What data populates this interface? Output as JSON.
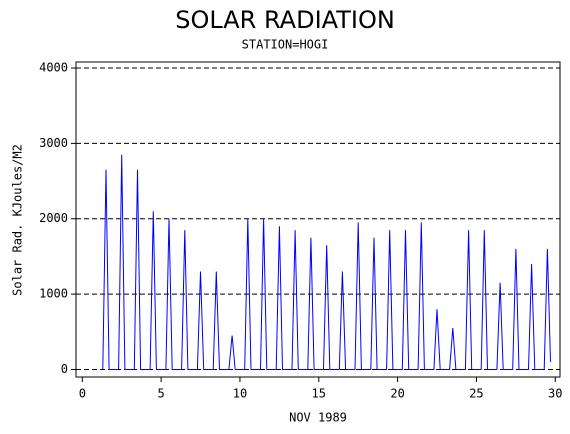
{
  "chart_data": {
    "type": "line",
    "title": "SOLAR RADIATION",
    "subtitle": "STATION=HOGI",
    "x_label": "NOV 1989",
    "y_label": "Solar Rad. KJoules/M2",
    "x": [
      1.3,
      1.5,
      1.7,
      2.3,
      2.5,
      2.7,
      3.3,
      3.5,
      3.7,
      4.3,
      4.5,
      4.7,
      5.3,
      5.5,
      5.7,
      6.3,
      6.5,
      6.7,
      7.3,
      7.5,
      7.7,
      8.3,
      8.5,
      8.7,
      9.3,
      9.5,
      9.7,
      10.3,
      10.5,
      10.7,
      11.3,
      11.5,
      11.7,
      12.3,
      12.5,
      12.7,
      13.3,
      13.5,
      13.7,
      14.3,
      14.5,
      14.7,
      15.3,
      15.5,
      15.7,
      16.3,
      16.5,
      16.7,
      17.3,
      17.5,
      17.7,
      18.3,
      18.5,
      18.7,
      19.3,
      19.5,
      19.7,
      20.3,
      20.5,
      20.7,
      21.3,
      21.5,
      21.7,
      22.3,
      22.5,
      22.7,
      23.3,
      23.5,
      23.7,
      24.3,
      24.5,
      24.7,
      25.3,
      25.5,
      25.7,
      26.3,
      26.5,
      26.7,
      27.3,
      27.5,
      27.7,
      28.3,
      28.5,
      28.7,
      29.3,
      29.5,
      29.7
    ],
    "values": [
      0,
      2650,
      0,
      0,
      2850,
      0,
      0,
      2650,
      0,
      0,
      2100,
      0,
      0,
      2000,
      0,
      0,
      1850,
      0,
      0,
      1300,
      0,
      0,
      1300,
      0,
      0,
      450,
      0,
      0,
      2000,
      0,
      0,
      2000,
      0,
      0,
      1900,
      0,
      0,
      1850,
      0,
      0,
      1750,
      0,
      0,
      1650,
      0,
      0,
      1300,
      0,
      0,
      1950,
      0,
      0,
      1750,
      0,
      0,
      1850,
      0,
      0,
      1850,
      0,
      0,
      1950,
      0,
      0,
      800,
      0,
      0,
      550,
      0,
      0,
      1850,
      0,
      0,
      1850,
      0,
      0,
      1150,
      0,
      0,
      1600,
      0,
      0,
      1400,
      0,
      0,
      1600,
      100
    ],
    "color": "#0000ff",
    "xlim": [
      -0.4,
      30.3
    ],
    "xticks": [
      0,
      5,
      10,
      15,
      20,
      25,
      30
    ],
    "ylim": [
      -100,
      4080
    ],
    "yticks": [
      0,
      1000,
      2000,
      3000,
      4000
    ],
    "grid": true
  }
}
